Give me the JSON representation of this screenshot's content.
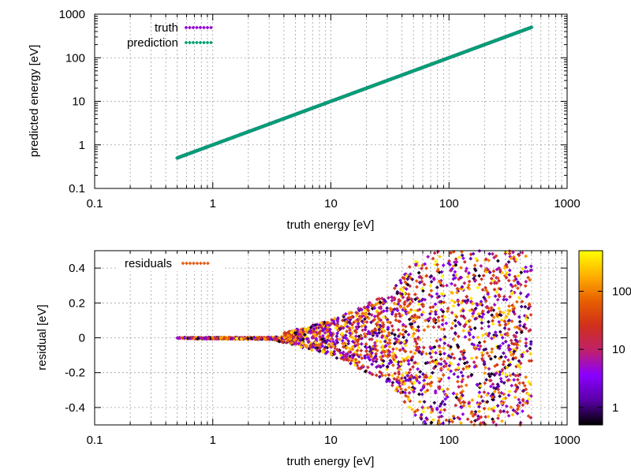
{
  "chart_data": [
    {
      "type": "scatter",
      "xlabel": "truth energy [eV]",
      "ylabel": "predicted energy [eV]",
      "xscale": "log",
      "yscale": "log",
      "xlim": [
        0.1,
        1000
      ],
      "ylim": [
        0.1,
        1000
      ],
      "x_ticks": [
        0.1,
        1,
        10,
        100,
        1000
      ],
      "x_tick_labels": [
        "0.1",
        "1",
        "10",
        "100",
        "1000"
      ],
      "y_ticks": [
        0.1,
        1,
        10,
        100,
        1000
      ],
      "y_tick_labels": [
        "0.1",
        "1",
        "10",
        "100",
        "1000"
      ],
      "grid": true,
      "legend_position": "top-left",
      "series": [
        {
          "name": "truth",
          "color": "#9400d3",
          "marker": "diamond",
          "x_range": [
            0.5,
            500
          ],
          "relation": "y = x"
        },
        {
          "name": "prediction",
          "color": "#009e73",
          "marker": "diamond",
          "x_range": [
            0.5,
            500
          ],
          "relation": "y = x"
        }
      ]
    },
    {
      "type": "scatter",
      "xlabel": "truth energy [eV]",
      "ylabel": "residual [eV]",
      "xscale": "log",
      "xlim": [
        0.1,
        1000
      ],
      "ylim": [
        -0.5,
        0.5
      ],
      "x_ticks": [
        0.1,
        1,
        10,
        100,
        1000
      ],
      "x_tick_labels": [
        "0.1",
        "1",
        "10",
        "100",
        "1000"
      ],
      "y_ticks": [
        -0.4,
        -0.2,
        0,
        0.2,
        0.4
      ],
      "y_tick_labels": [
        "-0.4",
        "-0.2",
        "0",
        "0.2",
        "0.4"
      ],
      "grid": true,
      "legend_position": "top-left",
      "series": [
        {
          "name": "residuals",
          "color": "#e2611b",
          "marker": "diamond",
          "x_range": [
            0.5,
            500
          ],
          "spread_profile": "residual spread grows with truth energy; near zero below 3 eV, about ±0.1 at 10 eV, about ±0.25 at 30 eV, filling ±0.5 above 70 eV"
        }
      ],
      "colorbar": {
        "scale": "log",
        "range": [
          0.5,
          500
        ],
        "ticks": [
          1,
          10,
          100
        ],
        "tick_labels": [
          "1",
          "10",
          "100"
        ],
        "palette": [
          "#000000",
          "#5a00a8",
          "#8a00ff",
          "#c0206a",
          "#d0301a",
          "#e86000",
          "#ffb000",
          "#ffff00"
        ]
      }
    }
  ]
}
